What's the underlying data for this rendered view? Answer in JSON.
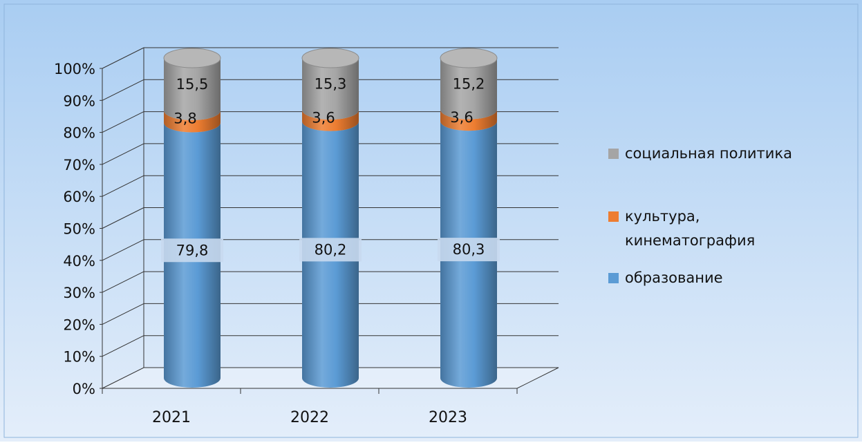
{
  "chart_data": {
    "type": "bar",
    "stacked": true,
    "percent_stacked": true,
    "style": "3d-cylinder",
    "categories": [
      "2021",
      "2022",
      "2023"
    ],
    "series": [
      {
        "name": "образование",
        "values": [
          79.8,
          80.2,
          80.3
        ],
        "labels": [
          "79,8",
          "80,2",
          "80,3"
        ],
        "color": "#5b9bd5"
      },
      {
        "name": "культура, кинематография",
        "values": [
          3.8,
          3.6,
          3.6
        ],
        "labels": [
          "3,8",
          "3,6",
          "3,6"
        ],
        "color": "#ed7d31"
      },
      {
        "name": "социальная политика",
        "values": [
          15.5,
          15.3,
          15.2
        ],
        "labels": [
          "15,5",
          "15,3",
          "15,2"
        ],
        "color": "#a5a5a5"
      }
    ],
    "y_ticks": [
      "0%",
      "10%",
      "20%",
      "30%",
      "40%",
      "50%",
      "60%",
      "70%",
      "80%",
      "90%",
      "100%"
    ],
    "ylim": [
      0,
      100
    ],
    "grid": true,
    "legend_position": "right",
    "legend_order": [
      "социальная политика",
      "культура, кинематография",
      "образование"
    ],
    "background_colors": [
      "#a9cdf2",
      "#e4eefa"
    ]
  }
}
